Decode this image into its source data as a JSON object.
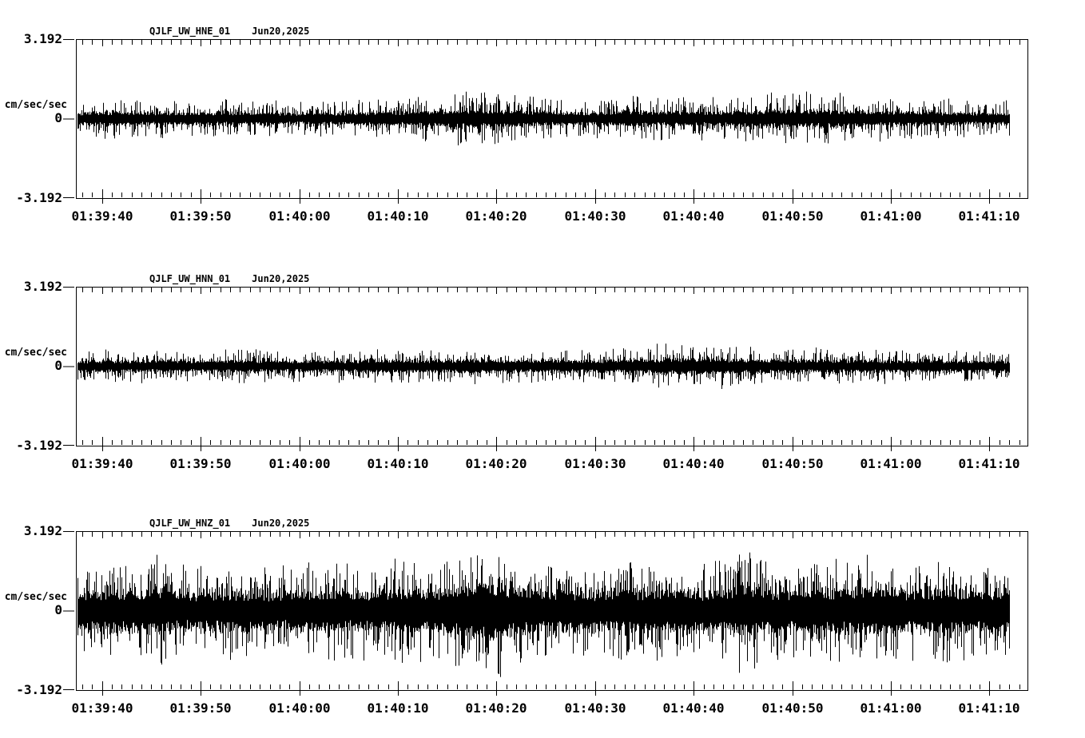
{
  "layout_colors": {
    "background": "#ffffff",
    "foreground": "#000000"
  },
  "chart_data": [
    {
      "type": "line",
      "subtype": "seismogram-waveform",
      "title": "QJLF_UW_HNE_01",
      "date": "Jun20,2025",
      "ylabel": "cm/sec/sec",
      "ylim": [
        -3.192,
        3.192
      ],
      "ytick_labels": [
        "3.192",
        "0",
        "-3.192"
      ],
      "ytick_values": [
        3.192,
        0,
        -3.192
      ],
      "grid": false,
      "legend": false,
      "x_axis": {
        "labels": [
          "01:39:40",
          "01:39:50",
          "01:40:00",
          "01:40:10",
          "01:40:20",
          "01:40:30",
          "01:40:40",
          "01:40:50",
          "01:41:00",
          "01:41:10"
        ],
        "first_tick_s": 2.65,
        "tick_interval_s": 10,
        "minor_interval_s": 1,
        "duration_s": 96.5,
        "data_start_s": 0.15,
        "data_end_s": 94.6
      },
      "envelope_step_seconds": 4,
      "envelope": [
        0.85,
        0.9,
        0.85,
        0.8,
        0.8,
        0.8,
        0.75,
        0.8,
        0.9,
        1.0,
        1.3,
        1.05,
        0.9,
        0.85,
        1.0,
        0.95,
        0.9,
        1.05,
        1.2,
        1.15,
        1.0,
        0.95,
        0.85,
        0.8,
        0.75
      ],
      "core_fraction": 0.3
    },
    {
      "type": "line",
      "subtype": "seismogram-waveform",
      "title": "QJLF_UW_HNN_01",
      "date": "Jun20,2025",
      "ylabel": "cm/sec/sec",
      "ylim": [
        -3.192,
        3.192
      ],
      "ytick_labels": [
        "3.192",
        "0",
        "-3.192"
      ],
      "ytick_values": [
        3.192,
        0,
        -3.192
      ],
      "grid": false,
      "legend": false,
      "x_axis": {
        "labels": [
          "01:39:40",
          "01:39:50",
          "01:40:00",
          "01:40:10",
          "01:40:20",
          "01:40:30",
          "01:40:40",
          "01:40:50",
          "01:41:00",
          "01:41:10"
        ],
        "first_tick_s": 2.65,
        "tick_interval_s": 10,
        "minor_interval_s": 1,
        "duration_s": 96.5,
        "data_start_s": 0.15,
        "data_end_s": 94.6
      },
      "envelope_step_seconds": 4,
      "envelope": [
        0.65,
        0.7,
        0.7,
        0.65,
        0.75,
        0.7,
        0.65,
        0.7,
        0.8,
        0.75,
        0.85,
        0.75,
        0.7,
        0.75,
        0.8,
        0.95,
        1.0,
        0.85,
        0.8,
        0.75,
        0.75,
        0.7,
        0.7,
        0.65,
        0.6
      ],
      "core_fraction": 0.33
    },
    {
      "type": "line",
      "subtype": "seismogram-waveform",
      "title": "QJLF_UW_HNZ_01",
      "date": "Jun20,2025",
      "ylabel": "cm/sec/sec",
      "ylim": [
        -3.192,
        3.192
      ],
      "ytick_labels": [
        "3.192",
        "0",
        "-3.192"
      ],
      "ytick_values": [
        3.192,
        0,
        -3.192
      ],
      "grid": false,
      "legend": false,
      "x_axis": {
        "labels": [
          "01:39:40",
          "01:39:50",
          "01:40:00",
          "01:40:10",
          "01:40:20",
          "01:40:30",
          "01:40:40",
          "01:40:50",
          "01:41:00",
          "01:41:10"
        ],
        "first_tick_s": 2.65,
        "tick_interval_s": 10,
        "minor_interval_s": 1,
        "duration_s": 96.5,
        "data_start_s": 0.15,
        "data_end_s": 94.6
      },
      "envelope_step_seconds": 2,
      "envelope": [
        1.8,
        2.0,
        2.1,
        2.2,
        2.4,
        2.1,
        1.9,
        2.0,
        2.1,
        1.9,
        1.8,
        2.0,
        2.1,
        2.2,
        2.0,
        2.1,
        2.2,
        2.3,
        2.2,
        2.4,
        3.1,
        2.9,
        2.6,
        2.4,
        2.2,
        2.1,
        2.0,
        2.1,
        2.2,
        2.1,
        2.2,
        2.1,
        2.0,
        2.3,
        2.7,
        2.3,
        2.2,
        2.2,
        2.4,
        2.3,
        2.5,
        2.3,
        2.2,
        2.1,
        2.4,
        2.2,
        2.1,
        2.0,
        1.9
      ],
      "core_fraction": 0.38
    }
  ]
}
